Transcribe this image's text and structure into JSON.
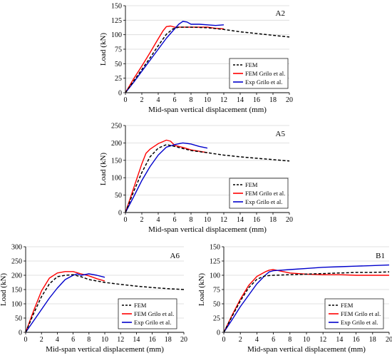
{
  "chart_data": [
    {
      "type": "line",
      "panel_label": "A2",
      "xlabel": "Mid-span vertical displacement (mm)",
      "ylabel": "Load (kN)",
      "xlim": [
        0,
        20
      ],
      "ylim": [
        0,
        150
      ],
      "xticks": [
        0,
        2,
        4,
        6,
        8,
        10,
        12,
        14,
        16,
        18,
        20
      ],
      "yticks": [
        0,
        25,
        50,
        75,
        100,
        125,
        150
      ],
      "legend_position": "bottom-right",
      "series": [
        {
          "name": "FEM",
          "color": "#000000",
          "style": "dashed",
          "x": [
            0,
            1,
            2,
            3,
            4,
            5,
            5.8,
            6.5,
            8,
            10,
            12,
            14,
            16,
            18,
            20
          ],
          "y": [
            0,
            20,
            40,
            60,
            81,
            101,
            110,
            113,
            113,
            112,
            109,
            105,
            102,
            99,
            96
          ]
        },
        {
          "name": "FEM Grilo et al.",
          "color": "#ff0000",
          "style": "solid",
          "x": [
            0,
            1,
            2,
            3,
            4,
            4.6,
            5.0,
            5.5,
            6,
            7,
            8,
            9,
            10,
            11,
            12
          ],
          "y": [
            0,
            24,
            46,
            69,
            93,
            107,
            114,
            115,
            113,
            113,
            113,
            113,
            113,
            111,
            110
          ]
        },
        {
          "name": "Exp Grilo et al.",
          "color": "#0000cc",
          "style": "solid",
          "x": [
            0,
            1,
            2,
            3,
            4,
            5,
            6,
            6.5,
            7,
            7.5,
            8,
            9,
            10,
            11,
            12
          ],
          "y": [
            0,
            18,
            37,
            56,
            75,
            94,
            110,
            118,
            123,
            122,
            118,
            118,
            117,
            116,
            117
          ]
        }
      ]
    },
    {
      "type": "line",
      "panel_label": "A5",
      "xlabel": "Mid-span vertical displacement (mm)",
      "ylabel": "Load (kN)",
      "xlim": [
        0,
        20
      ],
      "ylim": [
        0,
        250
      ],
      "xticks": [
        0,
        2,
        4,
        6,
        8,
        10,
        12,
        14,
        16,
        18,
        20
      ],
      "yticks": [
        0,
        50,
        100,
        150,
        200,
        250
      ],
      "legend_position": "bottom-right",
      "series": [
        {
          "name": "FEM",
          "color": "#000000",
          "style": "dashed",
          "x": [
            0,
            1,
            2,
            3,
            4,
            5,
            6,
            8,
            10,
            12,
            14,
            16,
            18,
            20
          ],
          "y": [
            0,
            60,
            115,
            160,
            185,
            195,
            190,
            178,
            172,
            165,
            160,
            156,
            152,
            148
          ]
        },
        {
          "name": "FEM Grilo et al.",
          "color": "#ff0000",
          "style": "solid",
          "x": [
            0,
            1,
            2,
            2.5,
            3,
            4,
            5,
            5.5,
            6,
            7,
            8,
            9,
            10
          ],
          "y": [
            0,
            70,
            140,
            170,
            182,
            198,
            208,
            205,
            193,
            187,
            180,
            176,
            172
          ]
        },
        {
          "name": "Exp Grilo et al.",
          "color": "#0000cc",
          "style": "solid",
          "x": [
            0,
            1,
            2,
            3,
            4,
            5,
            6,
            7,
            8,
            9,
            10
          ],
          "y": [
            0,
            45,
            92,
            132,
            165,
            188,
            195,
            200,
            197,
            190,
            185
          ]
        }
      ]
    },
    {
      "type": "line",
      "panel_label": "A6",
      "xlabel": "Mid-span vertical displacement (mm)",
      "ylabel": "Load (kN)",
      "xlim": [
        0,
        20
      ],
      "ylim": [
        0,
        300
      ],
      "xticks": [
        0,
        2,
        4,
        6,
        8,
        10,
        12,
        14,
        16,
        18,
        20
      ],
      "yticks": [
        0,
        50,
        100,
        150,
        200,
        250,
        300
      ],
      "legend_position": "bottom-right",
      "series": [
        {
          "name": "FEM",
          "color": "#000000",
          "style": "dashed",
          "x": [
            0,
            1,
            2,
            3,
            4,
            5,
            6,
            7,
            8,
            10,
            12,
            14,
            16,
            18,
            20
          ],
          "y": [
            0,
            65,
            125,
            170,
            195,
            200,
            202,
            195,
            185,
            175,
            168,
            162,
            157,
            153,
            150
          ]
        },
        {
          "name": "FEM Grilo et al.",
          "color": "#ff0000",
          "style": "solid",
          "x": [
            0,
            1,
            2,
            3,
            4,
            5,
            6,
            7,
            8,
            9,
            10
          ],
          "y": [
            0,
            75,
            145,
            190,
            208,
            213,
            213,
            205,
            198,
            188,
            180
          ]
        },
        {
          "name": "Exp Grilo et al.",
          "color": "#0000cc",
          "style": "solid",
          "x": [
            0,
            1,
            2,
            3,
            4,
            5,
            6,
            6.5,
            7,
            8,
            9,
            10
          ],
          "y": [
            0,
            40,
            80,
            120,
            155,
            185,
            200,
            205,
            200,
            205,
            200,
            193
          ]
        }
      ]
    },
    {
      "type": "line",
      "panel_label": "B1",
      "xlabel": "Mid-span vertical displacement (mm)",
      "ylabel": "Load (kN)",
      "xlim": [
        0,
        20
      ],
      "ylim": [
        0,
        150
      ],
      "xticks": [
        0,
        2,
        4,
        6,
        8,
        10,
        12,
        14,
        16,
        18,
        20
      ],
      "yticks": [
        0,
        25,
        50,
        75,
        100,
        125,
        150
      ],
      "legend_position": "bottom-right",
      "series": [
        {
          "name": "FEM",
          "color": "#000000",
          "style": "dashed",
          "x": [
            0,
            1,
            2,
            3,
            4,
            5,
            6,
            8,
            10,
            12,
            14,
            16,
            18,
            20
          ],
          "y": [
            0,
            28,
            55,
            78,
            93,
            99,
            100,
            101,
            102,
            103,
            104,
            105,
            105,
            106
          ]
        },
        {
          "name": "FEM Grilo et al.",
          "color": "#ff0000",
          "style": "solid",
          "x": [
            0,
            1,
            2,
            3,
            4,
            5,
            5.5,
            6,
            7,
            8,
            10,
            12,
            14,
            16,
            18,
            20
          ],
          "y": [
            0,
            30,
            58,
            82,
            98,
            106,
            109,
            110,
            107,
            104,
            102,
            101,
            101,
            100,
            100,
            100
          ]
        },
        {
          "name": "Exp Grilo et al.",
          "color": "#0000cc",
          "style": "solid",
          "x": [
            0,
            1,
            2,
            3,
            4,
            5,
            5.5,
            6,
            7,
            8,
            10,
            12,
            14,
            16,
            18,
            20
          ],
          "y": [
            0,
            22,
            45,
            65,
            85,
            100,
            106,
            108,
            109,
            110,
            112,
            114,
            115,
            116,
            117,
            118
          ]
        }
      ]
    }
  ]
}
